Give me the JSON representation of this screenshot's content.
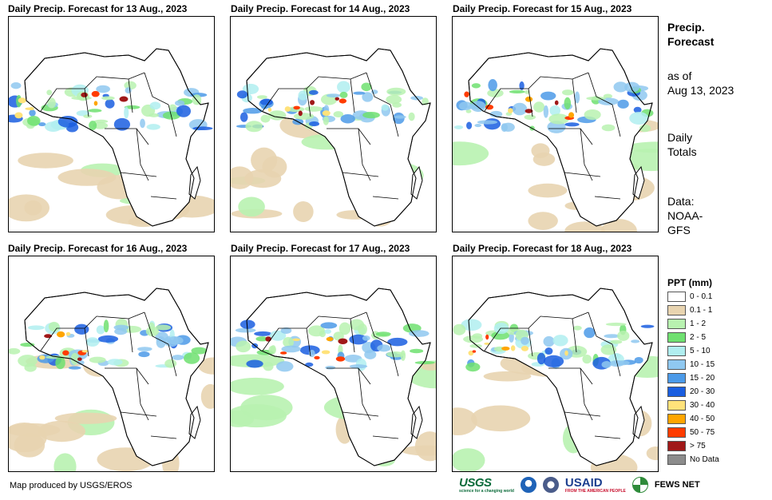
{
  "panels": [
    {
      "title": "Daily Precip. Forecast for 13 Aug., 2023"
    },
    {
      "title": "Daily Precip. Forecast for 14 Aug., 2023"
    },
    {
      "title": "Daily Precip. Forecast for 15 Aug., 2023"
    },
    {
      "title": "Daily Precip. Forecast for 16 Aug., 2023"
    },
    {
      "title": "Daily Precip. Forecast for 17 Aug., 2023"
    },
    {
      "title": "Daily Precip. Forecast for 18 Aug., 2023"
    }
  ],
  "sidebar": {
    "title_line1": "Precip.",
    "title_line2": "Forecast",
    "asof_line1": "as of",
    "asof_line2": "Aug 13, 2023",
    "totals_line1": "Daily",
    "totals_line2": "Totals",
    "data_line1": "Data:",
    "data_line2": "NOAA-",
    "data_line3": "GFS"
  },
  "legend": {
    "title": "PPT (mm)",
    "items": [
      {
        "label": "0 - 0.1",
        "color": "#ffffff"
      },
      {
        "label": "0.1 - 1",
        "color": "#e8d4b0"
      },
      {
        "label": "1 - 2",
        "color": "#b8f2b0"
      },
      {
        "label": "2 - 5",
        "color": "#6fe070"
      },
      {
        "label": "5 - 10",
        "color": "#b0eef0"
      },
      {
        "label": "10 - 15",
        "color": "#8fc8f0"
      },
      {
        "label": "15 - 20",
        "color": "#4c9ae8"
      },
      {
        "label": "20 - 30",
        "color": "#1a5ee0"
      },
      {
        "label": "30 - 40",
        "color": "#ffe27a"
      },
      {
        "label": "40 - 50",
        "color": "#ffa500"
      },
      {
        "label": "50 - 75",
        "color": "#ff3c00"
      },
      {
        "label": "> 75",
        "color": "#a01818"
      },
      {
        "label": "No Data",
        "color": "#8c8c8c"
      }
    ]
  },
  "footer": {
    "credit": "Map produced by USGS/EROS"
  },
  "logos": {
    "usgs": "USGS",
    "usgs_sub": "science for a changing world",
    "usaid": "USAID",
    "usaid_sub": "FROM THE AMERICAN PEOPLE",
    "fews": "FEWS NET"
  }
}
